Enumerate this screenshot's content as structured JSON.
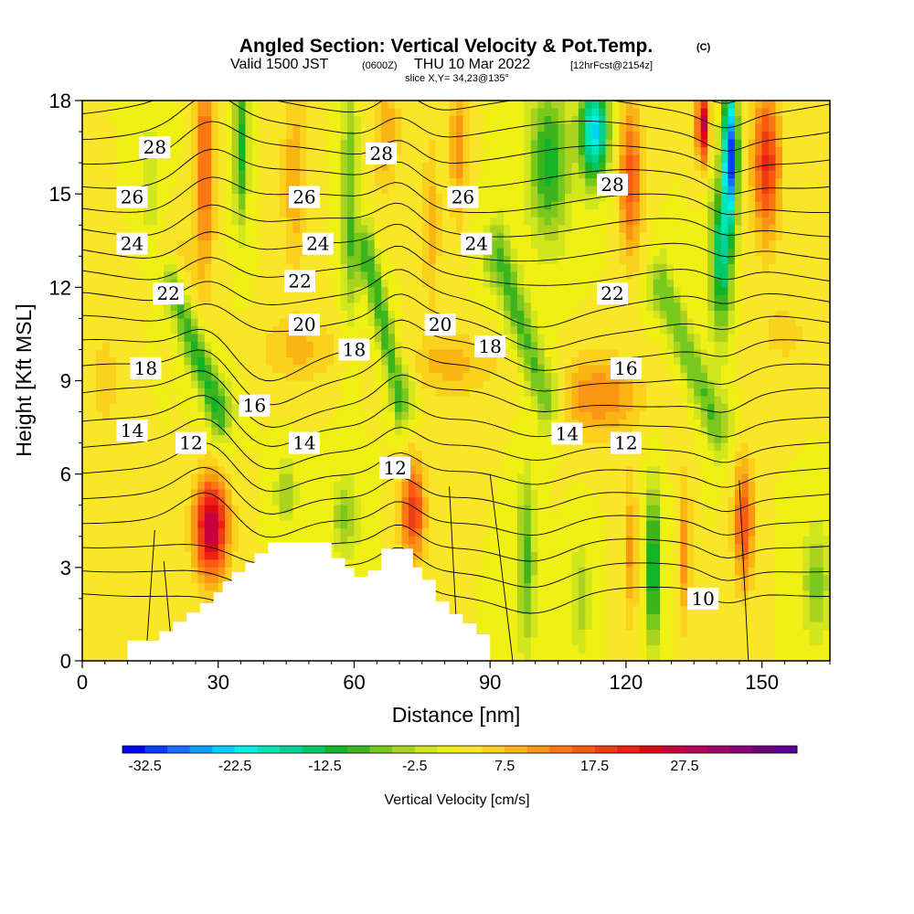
{
  "header": {
    "title": "Angled Section: Vertical Velocity & Pot.Temp.",
    "copyright": "(C)",
    "valid_prefix": "Valid 1500 JST",
    "valid_zulu": "(0600Z)",
    "valid_date": "THU 10 Mar 2022",
    "forecast": "[12hrFcst@2154z]",
    "slice": "slice X,Y= 34,23@135°"
  },
  "chart_data": {
    "type": "heatmap",
    "xlabel": "Distance [nm]",
    "ylabel": "Height [Kft MSL]",
    "xlim": [
      0,
      165
    ],
    "ylim": [
      0,
      18
    ],
    "xticks": [
      0,
      30,
      60,
      90,
      120,
      150
    ],
    "yticks": [
      0,
      3,
      6,
      9,
      12,
      15,
      18
    ],
    "colorbar": {
      "label": "Vertical Velocity [cm/s]",
      "min": -35,
      "step": 2.5,
      "tick_labels": [
        "-32.5",
        "-22.5",
        "-12.5",
        "-2.5",
        "7.5",
        "17.5",
        "27.5"
      ],
      "colors": [
        "#0000ff",
        "#0a3cff",
        "#1a6eff",
        "#0aa0ff",
        "#00d2ff",
        "#00f0e6",
        "#00e6b4",
        "#00d296",
        "#00c864",
        "#14b428",
        "#3cb41e",
        "#78c81e",
        "#aad21e",
        "#d2e61e",
        "#f0f014",
        "#fae628",
        "#fad21e",
        "#fab414",
        "#fa9614",
        "#fa7814",
        "#fa5a14",
        "#f03c14",
        "#f01e14",
        "#dc0a14",
        "#c8003c",
        "#b4005a",
        "#a00064",
        "#8c0078",
        "#6e0078",
        "#5a0096"
      ]
    },
    "potential_temperature_contours": {
      "interval": 1,
      "labels": [
        {
          "text": "28",
          "x": 16,
          "y": 16.5
        },
        {
          "text": "28",
          "x": 66,
          "y": 16.3
        },
        {
          "text": "28",
          "x": 117,
          "y": 15.3
        },
        {
          "text": "26",
          "x": 11,
          "y": 14.9
        },
        {
          "text": "26",
          "x": 49,
          "y": 14.9
        },
        {
          "text": "26",
          "x": 84,
          "y": 14.9
        },
        {
          "text": "24",
          "x": 11,
          "y": 13.4
        },
        {
          "text": "24",
          "x": 52,
          "y": 13.4
        },
        {
          "text": "24",
          "x": 87,
          "y": 13.4
        },
        {
          "text": "22",
          "x": 19,
          "y": 11.8
        },
        {
          "text": "22",
          "x": 48,
          "y": 12.2
        },
        {
          "text": "22",
          "x": 117,
          "y": 11.8
        },
        {
          "text": "20",
          "x": 49,
          "y": 10.8
        },
        {
          "text": "20",
          "x": 79,
          "y": 10.8
        },
        {
          "text": "18",
          "x": 14,
          "y": 9.4
        },
        {
          "text": "18",
          "x": 60,
          "y": 10.0
        },
        {
          "text": "18",
          "x": 90,
          "y": 10.1
        },
        {
          "text": "16",
          "x": 38,
          "y": 8.2
        },
        {
          "text": "16",
          "x": 120,
          "y": 9.4
        },
        {
          "text": "14",
          "x": 11,
          "y": 7.4
        },
        {
          "text": "14",
          "x": 49,
          "y": 7.0
        },
        {
          "text": "14",
          "x": 107,
          "y": 7.3
        },
        {
          "text": "12",
          "x": 24,
          "y": 7.0
        },
        {
          "text": "12",
          "x": 69,
          "y": 6.2
        },
        {
          "text": "12",
          "x": 120,
          "y": 7.0
        },
        {
          "text": "10",
          "x": 137,
          "y": 2.0
        }
      ]
    },
    "terrain_kft": [
      [
        10,
        0.65
      ],
      [
        13,
        0.65
      ],
      [
        17,
        0.95
      ],
      [
        20,
        1.25
      ],
      [
        23,
        1.55
      ],
      [
        26,
        1.85
      ],
      [
        29,
        2.2
      ],
      [
        31,
        2.55
      ],
      [
        33,
        2.85
      ],
      [
        36,
        3.15
      ],
      [
        38,
        3.45
      ],
      [
        41,
        3.8
      ],
      [
        44,
        3.8
      ],
      [
        47,
        3.8
      ],
      [
        52,
        3.8
      ],
      [
        55,
        3.3
      ],
      [
        58,
        3.0
      ],
      [
        60,
        2.7
      ],
      [
        63,
        2.9
      ],
      [
        66,
        3.6
      ],
      [
        71,
        3.6
      ],
      [
        73,
        3.0
      ],
      [
        75,
        2.6
      ],
      [
        78,
        1.9
      ],
      [
        81,
        1.5
      ],
      [
        84,
        1.2
      ],
      [
        87,
        0.85
      ],
      [
        90,
        0.0
      ]
    ]
  }
}
